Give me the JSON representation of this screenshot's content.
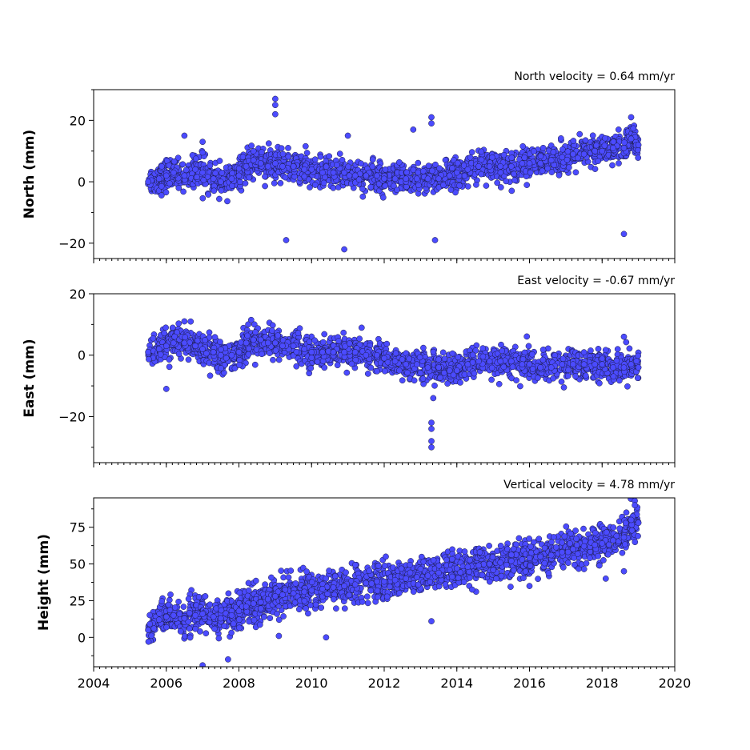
{
  "chart_data": [
    {
      "type": "scatter",
      "title": "North velocity = 0.64 mm/yr",
      "ylabel": "North (mm)",
      "xlim": [
        2004,
        2020
      ],
      "ylim": [
        -25,
        30
      ],
      "xticks": [
        2004,
        2006,
        2008,
        2010,
        2012,
        2014,
        2016,
        2018,
        2020
      ],
      "yticks": [
        -20,
        0,
        20
      ],
      "ytick_labels": [
        "−20",
        "0",
        "20"
      ],
      "show_xtick_labels": false,
      "series": [
        {
          "color": "#4b4bff",
          "x": [
            2005.5,
            2005.8,
            2006.0,
            2006.2,
            2006.5,
            2006.8,
            2007.0,
            2007.3,
            2007.5,
            2007.8,
            2008.0,
            2008.2,
            2008.4,
            2008.6,
            2008.8,
            2009.0,
            2009.2,
            2009.5,
            2009.8,
            2010.0,
            2010.3,
            2010.6,
            2010.9,
            2011.2,
            2011.5,
            2011.8,
            2012.0,
            2012.3,
            2012.6,
            2012.9,
            2013.2,
            2013.5,
            2013.8,
            2014.0,
            2014.3,
            2014.6,
            2014.9,
            2015.2,
            2015.5,
            2015.8,
            2016.0,
            2016.3,
            2016.6,
            2016.9,
            2017.2,
            2017.5,
            2017.8,
            2018.0,
            2018.3,
            2018.6,
            2018.8,
            2019.0
          ],
          "y": [
            0,
            1,
            2,
            3,
            2,
            4,
            3,
            1,
            0,
            1,
            2,
            5,
            7,
            6,
            5,
            6,
            5,
            5,
            4,
            4,
            3,
            3,
            3,
            2,
            2,
            2,
            1,
            1,
            1,
            1,
            1,
            1,
            2,
            3,
            4,
            5,
            5,
            5,
            5,
            6,
            6,
            6,
            7,
            8,
            9,
            9,
            10,
            10,
            11,
            11,
            14,
            12
          ]
        },
        {
          "color": "#4b4bff",
          "x": [
            2009.0,
            2009.0,
            2009.0,
            2013.3,
            2013.3,
            2009.3,
            2010.9,
            2013.4,
            2018.6,
            2018.8,
            2006.5,
            2012.8,
            2007.0,
            2011.0
          ],
          "y": [
            27,
            25,
            22,
            21,
            19,
            -19,
            -22,
            -19,
            -17,
            21,
            15,
            17,
            13,
            15
          ]
        }
      ]
    },
    {
      "type": "scatter",
      "title": "East velocity = -0.67 mm/yr",
      "ylabel": "East (mm)",
      "xlim": [
        2004,
        2020
      ],
      "ylim": [
        -35,
        20
      ],
      "xticks": [
        2004,
        2006,
        2008,
        2010,
        2012,
        2014,
        2016,
        2018,
        2020
      ],
      "yticks": [
        -20,
        0,
        20
      ],
      "ytick_labels": [
        "−20",
        "0",
        "20"
      ],
      "show_xtick_labels": false,
      "series": [
        {
          "color": "#4b4bff",
          "x": [
            2005.5,
            2005.8,
            2006.0,
            2006.2,
            2006.5,
            2006.8,
            2007.0,
            2007.3,
            2007.5,
            2007.8,
            2008.0,
            2008.2,
            2008.4,
            2008.6,
            2008.8,
            2009.0,
            2009.2,
            2009.5,
            2009.8,
            2010.0,
            2010.3,
            2010.6,
            2010.9,
            2011.2,
            2011.5,
            2011.8,
            2012.0,
            2012.3,
            2012.6,
            2012.9,
            2013.2,
            2013.5,
            2013.8,
            2014.0,
            2014.3,
            2014.6,
            2014.9,
            2015.2,
            2015.5,
            2015.8,
            2016.0,
            2016.3,
            2016.6,
            2016.9,
            2017.2,
            2017.5,
            2017.8,
            2018.0,
            2018.3,
            2018.6,
            2018.8,
            2019.0
          ],
          "y": [
            1,
            2,
            3,
            4,
            4,
            3,
            2,
            1,
            0,
            0,
            1,
            4,
            5,
            5,
            4,
            4,
            3,
            3,
            2,
            1,
            1,
            1,
            1,
            1,
            0,
            0,
            -1,
            -2,
            -3,
            -3,
            -4,
            -4,
            -5,
            -5,
            -3,
            -2,
            -2,
            -2,
            -2,
            -3,
            -3,
            -4,
            -4,
            -3,
            -3,
            -3,
            -3,
            -3,
            -4,
            -4,
            -3,
            -4
          ]
        },
        {
          "color": "#4b4bff",
          "x": [
            2013.3,
            2013.3,
            2013.3,
            2013.3,
            2013.35,
            2006.0,
            2006.5,
            2018.6
          ],
          "y": [
            -22,
            -24,
            -28,
            -30,
            -14,
            -11,
            11,
            6
          ]
        }
      ]
    },
    {
      "type": "scatter",
      "title": "Vertical velocity = 4.78 mm/yr",
      "ylabel": "Height (mm)",
      "xlim": [
        2004,
        2020
      ],
      "ylim": [
        -20,
        95
      ],
      "xticks": [
        2004,
        2006,
        2008,
        2010,
        2012,
        2014,
        2016,
        2018,
        2020
      ],
      "xtick_labels": [
        "2004",
        "2006",
        "2008",
        "2010",
        "2012",
        "2014",
        "2016",
        "2018",
        "2020"
      ],
      "yticks": [
        0,
        25,
        50,
        75
      ],
      "ytick_labels": [
        "0",
        "25",
        "50",
        "75"
      ],
      "show_xtick_labels": true,
      "series": [
        {
          "color": "#4b4bff",
          "x": [
            2005.5,
            2005.8,
            2006.0,
            2006.2,
            2006.5,
            2006.8,
            2007.0,
            2007.3,
            2007.5,
            2007.8,
            2008.0,
            2008.2,
            2008.4,
            2008.6,
            2008.8,
            2009.0,
            2009.2,
            2009.5,
            2009.8,
            2010.0,
            2010.3,
            2010.6,
            2010.9,
            2011.2,
            2011.5,
            2011.8,
            2012.0,
            2012.3,
            2012.6,
            2012.9,
            2013.2,
            2013.5,
            2013.8,
            2014.0,
            2014.3,
            2014.6,
            2014.9,
            2015.2,
            2015.5,
            2015.8,
            2016.0,
            2016.3,
            2016.6,
            2016.9,
            2017.2,
            2017.5,
            2017.8,
            2018.0,
            2018.3,
            2018.6,
            2018.8,
            2019.0
          ],
          "y": [
            5,
            12,
            14,
            15,
            13,
            15,
            16,
            14,
            13,
            15,
            18,
            21,
            23,
            24,
            26,
            28,
            29,
            30,
            31,
            32,
            33,
            34,
            35,
            36,
            37,
            38,
            38,
            39,
            40,
            41,
            42,
            44,
            46,
            47,
            48,
            49,
            50,
            51,
            52,
            53,
            54,
            55,
            56,
            58,
            60,
            62,
            63,
            64,
            66,
            68,
            80,
            78
          ]
        },
        {
          "color": "#4b4bff",
          "x": [
            2007.0,
            2007.7,
            2018.9,
            2018.9,
            2018.6,
            2018.1,
            2009.1,
            2010.4,
            2013.3,
            2016.0
          ],
          "y": [
            -19,
            -15,
            93,
            90,
            45,
            40,
            1,
            0,
            11,
            35
          ]
        }
      ]
    }
  ]
}
